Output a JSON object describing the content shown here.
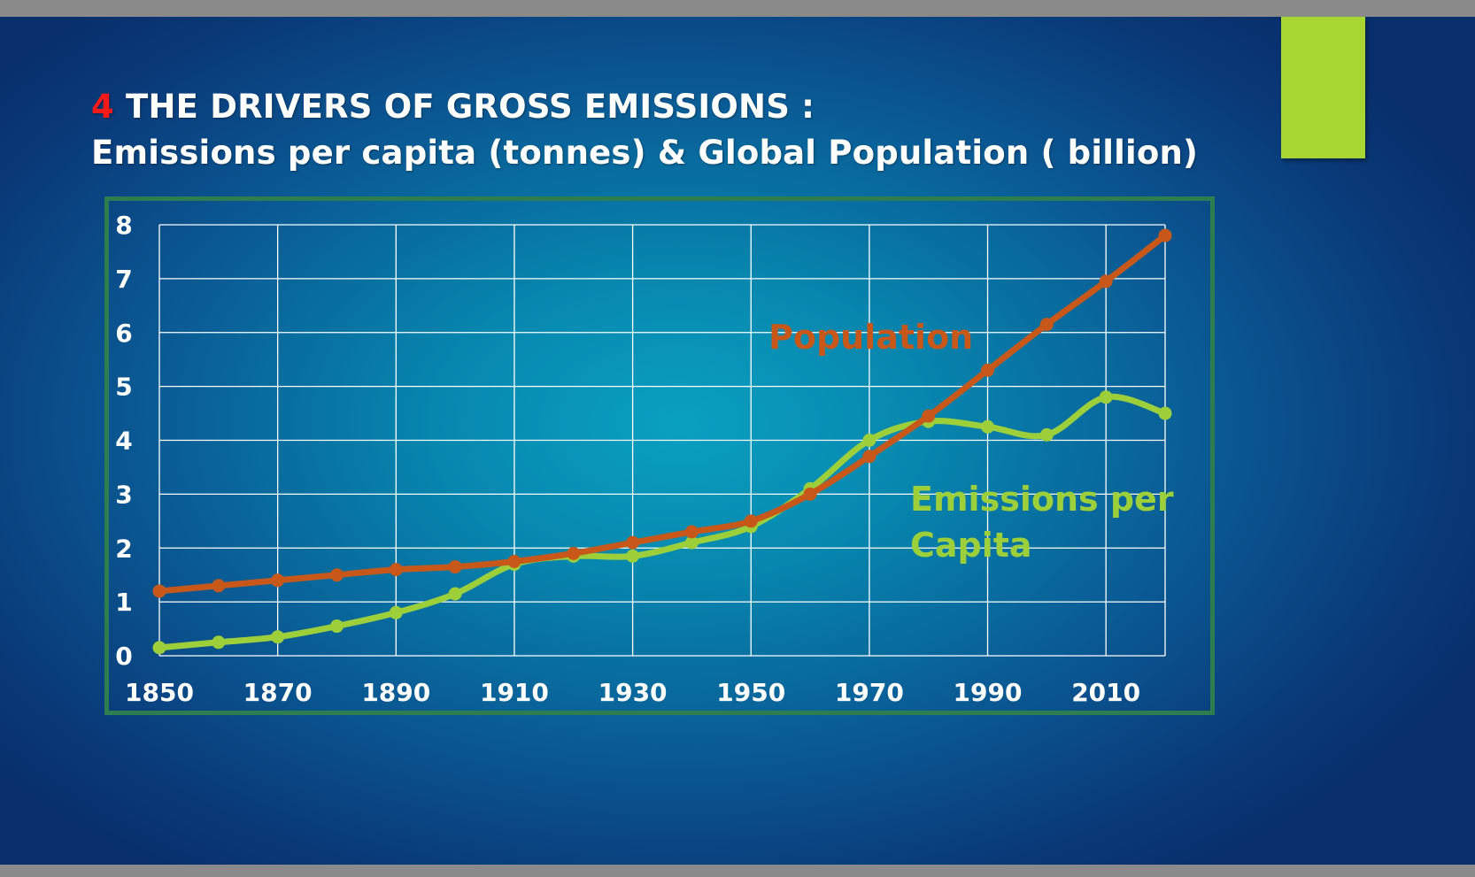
{
  "slide": {
    "title_number": "4",
    "title_line1": " THE DRIVERS OF GROSS EMISSIONS :",
    "title_line2": "Emissions per capita (tonnes) &  Global Population ( billion)"
  },
  "chart_data": {
    "type": "line",
    "title": "",
    "xlabel": "",
    "ylabel": "",
    "xlim": [
      1850,
      2020
    ],
    "ylim": [
      0,
      8
    ],
    "grid": true,
    "x_ticks": [
      1850,
      1870,
      1890,
      1910,
      1930,
      1950,
      1970,
      1990,
      2010
    ],
    "y_ticks": [
      0,
      1,
      2,
      3,
      4,
      5,
      6,
      7,
      8
    ],
    "x": [
      1850,
      1860,
      1870,
      1880,
      1890,
      1900,
      1910,
      1920,
      1930,
      1940,
      1950,
      1960,
      1970,
      1980,
      1990,
      2000,
      2010,
      2020
    ],
    "series": [
      {
        "name": "Population",
        "color": "#c8581a",
        "values": [
          1.2,
          1.3,
          1.4,
          1.5,
          1.6,
          1.65,
          1.75,
          1.9,
          2.1,
          2.3,
          2.5,
          3.0,
          3.7,
          4.45,
          5.3,
          6.15,
          6.95,
          7.8
        ]
      },
      {
        "name": "Emissions per Capita",
        "color": "#9ccf3a",
        "values": [
          0.15,
          0.25,
          0.35,
          0.55,
          0.8,
          1.15,
          1.7,
          1.85,
          1.85,
          2.1,
          2.4,
          3.1,
          4.0,
          4.35,
          4.25,
          4.1,
          4.8,
          4.5
        ]
      }
    ],
    "annotations": [
      {
        "text": "Population",
        "series": "Population",
        "color": "#c8581a"
      },
      {
        "text": "Emissions per",
        "series": "Emissions per Capita",
        "color": "#9ccf3a"
      },
      {
        "text": "Capita",
        "series": "Emissions per Capita",
        "color": "#9ccf3a"
      }
    ]
  }
}
